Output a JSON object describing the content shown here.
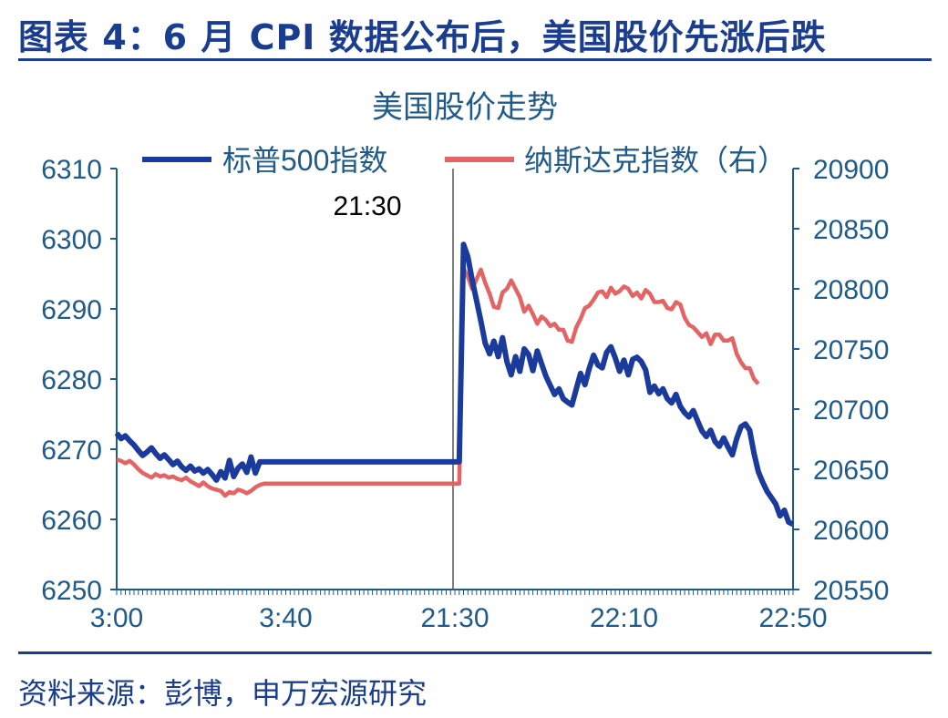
{
  "figure_title": "图表 4：6 月 CPI 数据公布后，美国股价先涨后跌",
  "source_note": "资料来源：彭博，申万宏源研究",
  "colors": {
    "sp500": "#1a3b9c",
    "nasdaq": "#e46466",
    "axis": "#1f5b8a",
    "title": "#1a3d8f"
  },
  "chart_data": {
    "type": "line",
    "title": "美国股价走势",
    "annotation": "21:30",
    "annotation_x": "21:30",
    "x_tick_labels": [
      "3:00",
      "3:40",
      "21:30",
      "22:10",
      "22:50"
    ],
    "legend_position": "top",
    "y_left": {
      "ticks": [
        6250,
        6260,
        6270,
        6280,
        6290,
        6300,
        6310
      ],
      "range": [
        6250,
        6310
      ]
    },
    "y_right": {
      "ticks": [
        20550,
        20600,
        20650,
        20700,
        20750,
        20800,
        20850,
        20900
      ],
      "range": [
        20550,
        20900
      ]
    },
    "series": [
      {
        "name": "标普500指数",
        "axis": "left",
        "values": [
          6272.3,
          6271.5,
          6271.9,
          6271.2,
          6270.6,
          6269.8,
          6269.1,
          6269.6,
          6270.2,
          6269.4,
          6268.7,
          6269.2,
          6268.5,
          6267.8,
          6268.3,
          6267.5,
          6267.0,
          6267.6,
          6266.9,
          6267.2,
          6266.6,
          6267.1,
          6266.4,
          6265.6,
          6266.8,
          6265.9,
          6268.4,
          6266.1,
          6267.3,
          6267.9,
          6266.7,
          6268.9,
          6266.6,
          6268.2,
          6268.2,
          6268.2,
          6268.2,
          6268.2,
          6268.2,
          6268.2,
          6268.2,
          6268.2,
          6268.2,
          6268.2,
          6268.2,
          6268.2,
          6268.2,
          6268.2,
          6268.2,
          6268.2,
          6268.2,
          6268.2,
          6268.2,
          6268.2,
          6268.2,
          6268.2,
          6268.2,
          6268.2,
          6268.2,
          6268.2,
          6268.2,
          6268.2,
          6268.2,
          6268.2,
          6268.2,
          6268.2,
          6268.2,
          6268.2,
          6268.2,
          6268.2,
          6268.2,
          6268.2,
          6268.2,
          6268.2,
          6268.2,
          6268.2,
          6268.2,
          6268.2,
          6268.2,
          6268.2,
          6299.2,
          6297.4,
          6294.1,
          6291.2,
          6288.3,
          6285.1,
          6283.6,
          6285.4,
          6283.2,
          6285.9,
          6282.5,
          6280.6,
          6283.2,
          6281.1,
          6284.3,
          6283.5,
          6281.2,
          6284.0,
          6282.2,
          6280.4,
          6279.1,
          6277.8,
          6278.6,
          6277.2,
          6276.7,
          6276.3,
          6278.6,
          6280.8,
          6279.2,
          6281.5,
          6283.4,
          6282.0,
          6281.6,
          6283.8,
          6284.6,
          6283.0,
          6281.1,
          6282.7,
          6280.6,
          6282.8,
          6283.1,
          6282.5,
          6281.3,
          6278.1,
          6279.0,
          6277.9,
          6278.6,
          6277.2,
          6276.6,
          6277.8,
          6276.1,
          6275.2,
          6274.6,
          6275.5,
          6274.0,
          6272.6,
          6271.8,
          6272.7,
          6271.1,
          6270.4,
          6271.6,
          6270.3,
          6269.2,
          6271.5,
          6273.2,
          6273.6,
          6272.7,
          6269.4,
          6266.8,
          6265.3,
          6264.0,
          6263.1,
          6262.2,
          6260.5,
          6261.3,
          6259.6,
          6259.3
        ]
      },
      {
        "name": "纳斯达克指数（右）",
        "axis": "right",
        "values": [
          20658,
          20657,
          20655,
          20657,
          20654,
          20650,
          20647,
          20645,
          20643,
          20646,
          20644,
          20645,
          20643,
          20644,
          20642,
          20641,
          20643,
          20640,
          20638,
          20636,
          20639,
          20636,
          20634,
          20633,
          20632,
          20628,
          20631,
          20630,
          20633,
          20632,
          20630,
          20632,
          20635,
          20637,
          20638,
          20638,
          20638,
          20638,
          20638,
          20638,
          20638,
          20638,
          20638,
          20638,
          20638,
          20638,
          20638,
          20638,
          20638,
          20638,
          20638,
          20638,
          20638,
          20638,
          20638,
          20638,
          20638,
          20638,
          20638,
          20638,
          20638,
          20638,
          20638,
          20638,
          20638,
          20638,
          20638,
          20638,
          20638,
          20638,
          20638,
          20638,
          20638,
          20638,
          20638,
          20638,
          20638,
          20638,
          20638,
          20638,
          20817,
          20810,
          20800,
          20808,
          20816,
          20805,
          20796,
          20785,
          20784,
          20797,
          20800,
          20807,
          20800,
          20793,
          20781,
          20786,
          20779,
          20771,
          20777,
          20774,
          20769,
          20771,
          20766,
          20766,
          20757,
          20756,
          20768,
          20775,
          20784,
          20786,
          20791,
          20797,
          20798,
          20793,
          20801,
          20796,
          20798,
          20802,
          20800,
          20794,
          20797,
          20792,
          20799,
          20796,
          20789,
          20789,
          20790,
          20784,
          20783,
          20789,
          20787,
          20776,
          20770,
          20768,
          20764,
          20760,
          20763,
          20754,
          20762,
          20762,
          20757,
          20757,
          20759,
          20746,
          20739,
          20734,
          20734,
          20725,
          20721
        ]
      }
    ]
  }
}
